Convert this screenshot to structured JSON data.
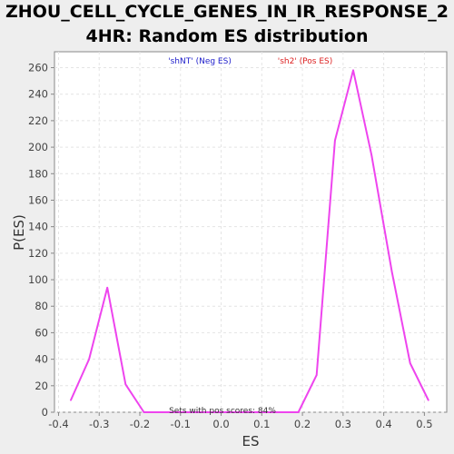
{
  "chart_data": {
    "type": "line",
    "title_lines": [
      "ZHOU_CELL_CYCLE_GENES_IN_IR_RESPONSE_2",
      "4HR: Random ES distribution"
    ],
    "xlabel": "ES",
    "ylabel": "P(ES)",
    "xlim": [
      -0.41,
      0.555
    ],
    "ylim": [
      0,
      272
    ],
    "xticks": [
      -0.4,
      -0.3,
      -0.2,
      -0.1,
      0.0,
      0.1,
      0.2,
      0.3,
      0.4,
      0.5
    ],
    "xtick_labels": [
      "-0.4",
      "-0.3",
      "-0.2",
      "-0.1",
      "0.0",
      "0.1",
      "0.2",
      "0.3",
      "0.4",
      "0.5"
    ],
    "yticks": [
      0,
      20,
      40,
      60,
      80,
      100,
      120,
      140,
      160,
      180,
      200,
      220,
      240,
      260
    ],
    "ytick_labels": [
      "0",
      "20",
      "40",
      "60",
      "80",
      "100",
      "120",
      "140",
      "160",
      "180",
      "200",
      "220",
      "240",
      "260"
    ],
    "grid": true,
    "series": [
      {
        "color": "#ee44ee",
        "x": [
          -0.37,
          -0.325,
          -0.28,
          -0.235,
          -0.19,
          -0.145,
          -0.1,
          -0.055,
          -0.01,
          0.035,
          0.08,
          0.125,
          0.17,
          0.19,
          0.235,
          0.28,
          0.325,
          0.37,
          0.42,
          0.465,
          0.51
        ],
        "y": [
          9,
          40,
          94,
          21,
          0,
          0,
          0,
          0,
          0,
          0,
          0,
          0,
          0,
          0,
          28,
          205,
          258,
          194,
          106,
          37,
          9
        ]
      }
    ],
    "legend": {
      "placement": "top",
      "neg_label": "'shNT' (Neg ES)",
      "neg_color": "#2222cc",
      "pos_label": "'sh2' (Pos ES)",
      "pos_color": "#dd2222"
    },
    "annotation": "Sets with pos scores: 84%"
  }
}
